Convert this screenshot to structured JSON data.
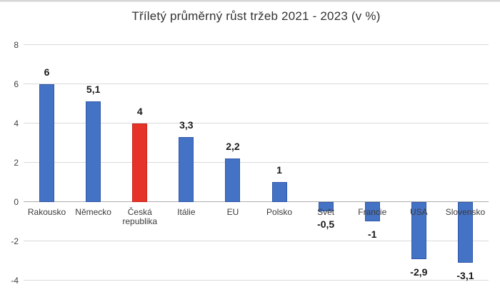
{
  "chart_data": {
    "type": "bar",
    "title": "Tříletý průměrný růst tržeb 2021 - 2023 (v %)",
    "categories": [
      "Rakousko",
      "Německo",
      "Česká republika",
      "Itálie",
      "EU",
      "Polsko",
      "Svět",
      "Francie",
      "USA",
      "Slovensko"
    ],
    "values": [
      6,
      5.1,
      4,
      3.3,
      2.2,
      1,
      -0.5,
      -1,
      -2.9,
      -3.1
    ],
    "value_labels": [
      "6",
      "5,1",
      "4",
      "3,3",
      "2,2",
      "1",
      "-0,5",
      "-1",
      "-2,9",
      "-3,1"
    ],
    "highlight_index": 2,
    "bar_colors": [
      "#4472c4",
      "#4472c4",
      "#e5332a",
      "#4472c4",
      "#4472c4",
      "#4472c4",
      "#4472c4",
      "#4472c4",
      "#4472c4",
      "#4472c4"
    ],
    "bar_border_colors": [
      "#3059a9",
      "#3059a9",
      "#c7221a",
      "#3059a9",
      "#3059a9",
      "#3059a9",
      "#3059a9",
      "#3059a9",
      "#3059a9",
      "#3059a9"
    ],
    "yticks": [
      8,
      6,
      4,
      2,
      0,
      -2,
      -4
    ],
    "ytick_labels": [
      "8",
      "6",
      "4",
      "2",
      "0",
      "-2",
      "-4"
    ],
    "ylim": [
      -4,
      8
    ],
    "xlabel": "",
    "ylabel": "",
    "grid": true,
    "legend": "none",
    "colors": {
      "bar_default": "#4472c4",
      "bar_highlight": "#e5332a",
      "gridline": "#d9d9d9",
      "zero_axis_line": "#adadad",
      "title_text": "#333333",
      "tick_text": "#404040",
      "value_label_text": "#1a1a1a",
      "category_text": "#3b3b3b",
      "background": "#ffffff"
    }
  }
}
